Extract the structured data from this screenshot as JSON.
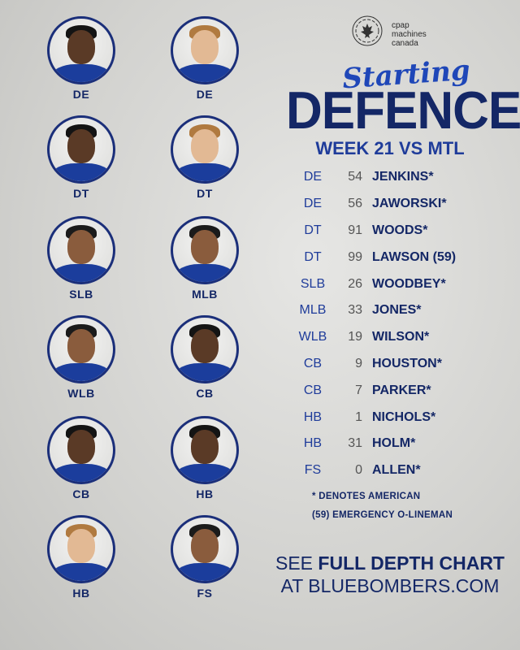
{
  "players": [
    {
      "position": "DE",
      "tone": "dark"
    },
    {
      "position": "DE",
      "tone": "light"
    },
    {
      "position": "DT",
      "tone": "dark"
    },
    {
      "position": "DT",
      "tone": "light"
    },
    {
      "position": "SLB",
      "tone": "medium"
    },
    {
      "position": "MLB",
      "tone": "medium"
    },
    {
      "position": "WLB",
      "tone": "medium"
    },
    {
      "position": "CB",
      "tone": "dark"
    },
    {
      "position": "CB",
      "tone": "dark"
    },
    {
      "position": "HB",
      "tone": "dark"
    },
    {
      "position": "HB",
      "tone": "light"
    },
    {
      "position": "FS",
      "tone": "medium"
    }
  ],
  "sponsor": {
    "text": "cpap\nmachines\ncanada",
    "icon": "maple-leaf-icon"
  },
  "title": {
    "script": "Starting",
    "main": "DEFENCE",
    "subtitle": "WEEK 21 VS MTL"
  },
  "roster": [
    {
      "pos": "DE",
      "num": "54",
      "name": "JENKINS*"
    },
    {
      "pos": "DE",
      "num": "56",
      "name": "JAWORSKI*"
    },
    {
      "pos": "DT",
      "num": "91",
      "name": "WOODS*"
    },
    {
      "pos": "DT",
      "num": "99",
      "name": "LAWSON (59)"
    },
    {
      "pos": "SLB",
      "num": "26",
      "name": "WOODBEY*"
    },
    {
      "pos": "MLB",
      "num": "33",
      "name": "JONES*"
    },
    {
      "pos": "WLB",
      "num": "19",
      "name": "WILSON*"
    },
    {
      "pos": "CB",
      "num": "9",
      "name": "HOUSTON*"
    },
    {
      "pos": "CB",
      "num": "7",
      "name": "PARKER*"
    },
    {
      "pos": "HB",
      "num": "1",
      "name": "NICHOLS*"
    },
    {
      "pos": "HB",
      "num": "31",
      "name": "HOLM*"
    },
    {
      "pos": "FS",
      "num": "0",
      "name": "ALLEN*"
    }
  ],
  "notes": {
    "american": "* DENOTES AMERICAN",
    "emergency": "(59) EMERGENCY O-LINEMAN"
  },
  "cta": {
    "line1_prefix": "SEE ",
    "line1_bold": "FULL DEPTH CHART",
    "line2": "AT BLUEBOMBERS.COM"
  },
  "colors": {
    "navy": "#142766",
    "royal": "#1f47b8"
  }
}
